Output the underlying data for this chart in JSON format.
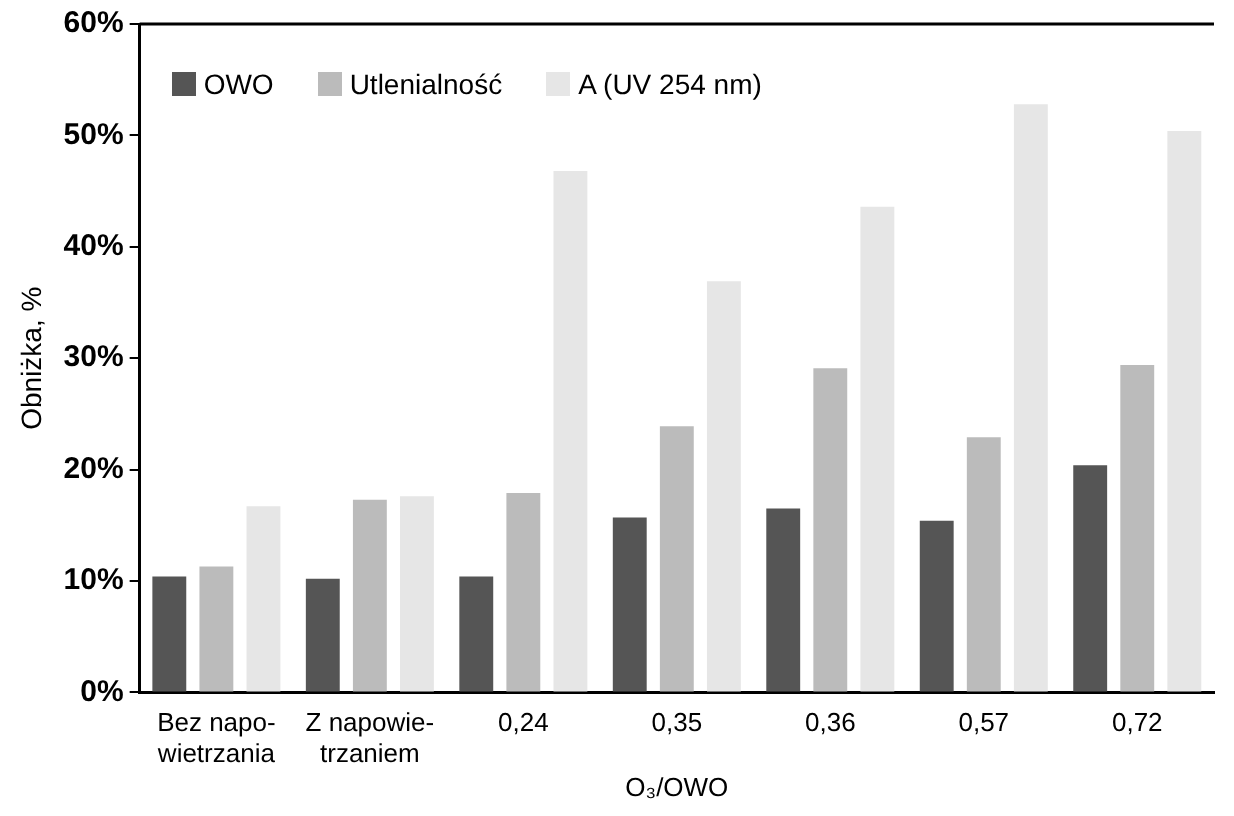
{
  "chart_data": {
    "type": "bar",
    "ylabel": "Obniżka, %",
    "xlabel": "O₃/OWO",
    "categories": [
      "Bez napo-\nwietrzania",
      "Z napowie-\ntrzaniem",
      "0,24",
      "0,35",
      "0,36",
      "0,57",
      "0,72"
    ],
    "series": [
      {
        "name": "OWO",
        "color": "#555555",
        "values": [
          10.4,
          10.2,
          10.4,
          15.7,
          16.5,
          15.4,
          20.4
        ]
      },
      {
        "name": "Utlenialność",
        "color": "#bbbbbb",
        "values": [
          11.3,
          17.3,
          17.9,
          23.9,
          29.1,
          22.9,
          29.4
        ]
      },
      {
        "name": "A (UV 254 nm)",
        "color": "#e6e6e6",
        "values": [
          16.7,
          17.6,
          46.8,
          36.9,
          43.6,
          52.8,
          50.4
        ]
      }
    ],
    "ylim": [
      0,
      60
    ],
    "yticks": [
      {
        "value": 0,
        "label": "0%"
      },
      {
        "value": 10,
        "label": "10%"
      },
      {
        "value": 20,
        "label": "20%"
      },
      {
        "value": 30,
        "label": "30%"
      },
      {
        "value": 40,
        "label": "40%"
      },
      {
        "value": 50,
        "label": "50%"
      },
      {
        "value": 60,
        "label": "60%"
      }
    ],
    "grid": false,
    "legend": "top left"
  }
}
